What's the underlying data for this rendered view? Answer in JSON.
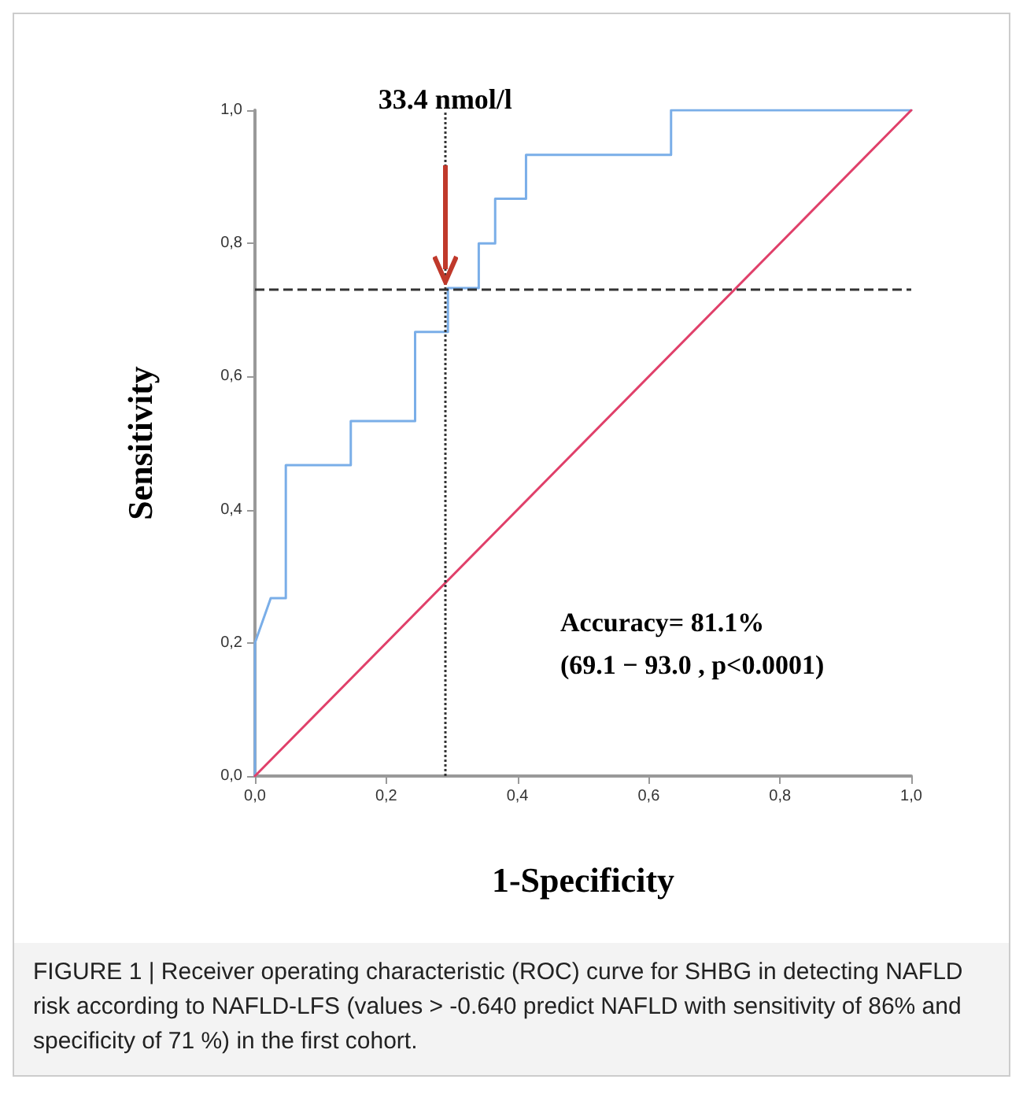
{
  "chart_data": {
    "type": "line",
    "xlabel": "1-Specificity",
    "ylabel": "Sensitivity",
    "xlim": [
      0,
      1
    ],
    "ylim": [
      0,
      1
    ],
    "xticks": [
      {
        "value": 0,
        "label": "0,0"
      },
      {
        "value": 0.2,
        "label": "0,2"
      },
      {
        "value": 0.4,
        "label": "0,4"
      },
      {
        "value": 0.6,
        "label": "0,6"
      },
      {
        "value": 0.8,
        "label": "0,8"
      },
      {
        "value": 1,
        "label": "1,0"
      }
    ],
    "yticks": [
      {
        "value": 0,
        "label": "0,0"
      },
      {
        "value": 0.2,
        "label": "0,2"
      },
      {
        "value": 0.4,
        "label": "0,4"
      },
      {
        "value": 0.6,
        "label": "0,6"
      },
      {
        "value": 0.8,
        "label": "0,8"
      },
      {
        "value": 1,
        "label": "1,0"
      }
    ],
    "series": [
      {
        "color": "#7aaee8",
        "x": [
          0,
          0,
          0.024,
          0.047,
          0.047,
          0.146,
          0.146,
          0.244,
          0.244,
          0.294,
          0.294,
          0.341,
          0.341,
          0.366,
          0.366,
          0.413,
          0.413,
          0.634,
          0.634,
          1
        ],
        "values": [
          0,
          0.2,
          0.267,
          0.267,
          0.467,
          0.467,
          0.533,
          0.533,
          0.667,
          0.667,
          0.733,
          0.733,
          0.8,
          0.8,
          0.867,
          0.867,
          0.933,
          0.933,
          1,
          1
        ]
      },
      {
        "color": "#e0406a",
        "x": [
          0,
          1
        ],
        "values": [
          0,
          1
        ]
      }
    ],
    "ref_lines": [
      {
        "axis": "x",
        "value": 0.29,
        "label": "33.4 nmol/l",
        "color": "#333333",
        "line_style": "dotted"
      },
      {
        "axis": "y",
        "value": 0.73,
        "label": null,
        "color": "#333333",
        "line_style": "dashed"
      }
    ],
    "annotations": [
      "Accuracy= 81.1%",
      "(69.1 − 93.0 , p<0.0001)",
      "FIGURE 1 | Receiver operating characteristic (ROC) curve for SHBG in detecting NAFLD risk according to NAFLD-LFS (values > -0.640 predict NAFLD with sensitivity of 86% and specificity of 71 %) in the first cohort."
    ],
    "grid": false,
    "marker": "none",
    "line_style": "solid"
  }
}
